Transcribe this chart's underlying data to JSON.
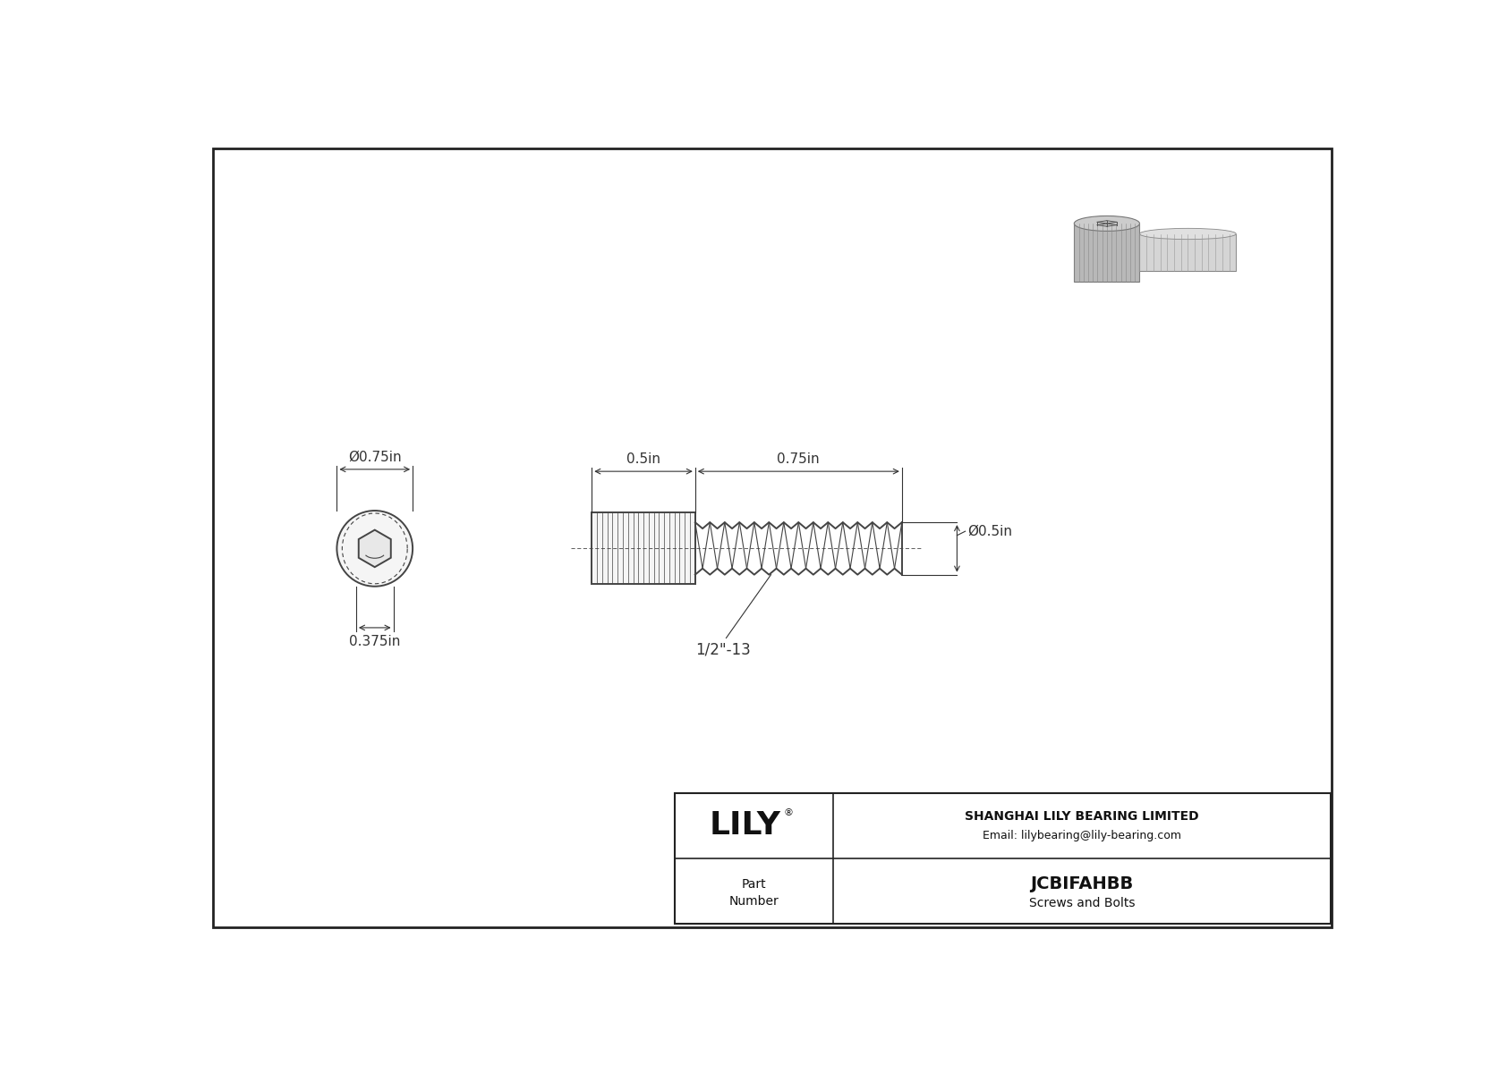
{
  "bg_color": "#ffffff",
  "border_color": "#333333",
  "drawing_color": "#444444",
  "line_color": "#555555",
  "company_name": "SHANGHAI LILY BEARING LIMITED",
  "company_email": "Email: lilybearing@lily-bearing.com",
  "part_number": "JCBIFAHBB",
  "part_category": "Screws and Bolts",
  "lily_logo": "LILY",
  "dim_color": "#333333",
  "dim_fontsize": 11,
  "label_fontsize": 11,
  "title_fontsize": 18,
  "dim_phi075": "Ø0.75in",
  "dim_05in": "0.5in",
  "dim_075in": "0.75in",
  "dim_phi05": "Ø0.5in",
  "dim_0375": "0.375in",
  "thread_label": "1/2\"-13"
}
